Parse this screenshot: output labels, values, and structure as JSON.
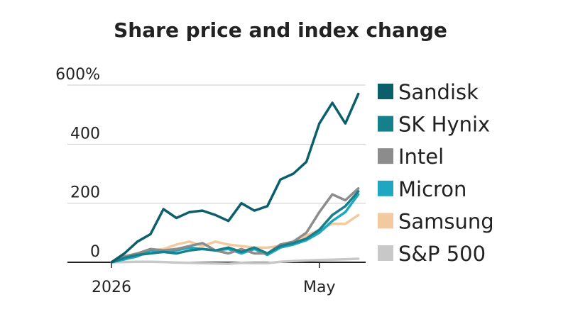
{
  "chart_data": {
    "type": "line",
    "title": "Share price and index change",
    "categories": [
      "2026",
      null,
      null,
      null,
      null,
      null,
      null,
      null,
      null,
      null,
      null,
      null,
      null,
      null,
      null,
      null,
      "May",
      null,
      null,
      null
    ],
    "series": [
      {
        "name": "Sandisk",
        "color": "#0b5f6b",
        "values": [
          0,
          30,
          70,
          95,
          180,
          150,
          170,
          175,
          160,
          140,
          200,
          175,
          190,
          280,
          300,
          340,
          470,
          540,
          470,
          570
        ]
      },
      {
        "name": "SK Hynix",
        "color": "#167f8c",
        "values": [
          0,
          15,
          25,
          30,
          35,
          30,
          40,
          45,
          40,
          50,
          35,
          50,
          30,
          55,
          65,
          80,
          110,
          160,
          190,
          240
        ]
      },
      {
        "name": "Intel",
        "color": "#8c8c8c",
        "values": [
          0,
          20,
          30,
          45,
          40,
          45,
          55,
          65,
          40,
          30,
          45,
          30,
          30,
          60,
          70,
          100,
          170,
          230,
          210,
          250
        ]
      },
      {
        "name": "Micron",
        "color": "#1fa6c0",
        "values": [
          0,
          10,
          20,
          40,
          35,
          40,
          50,
          45,
          40,
          45,
          30,
          45,
          25,
          50,
          60,
          75,
          100,
          140,
          170,
          230
        ]
      },
      {
        "name": "Samsung",
        "color": "#f3c9a0",
        "values": [
          0,
          10,
          25,
          40,
          45,
          60,
          70,
          55,
          70,
          60,
          55,
          50,
          50,
          55,
          70,
          90,
          110,
          130,
          130,
          160
        ]
      },
      {
        "name": "S&P 500",
        "color": "#c8c8c8",
        "values": [
          0,
          1,
          2,
          2,
          1,
          -1,
          -2,
          -3,
          -4,
          -5,
          -2,
          -3,
          -3,
          2,
          4,
          6,
          8,
          9,
          10,
          12
        ]
      }
    ],
    "ylim": [
      -15,
      600
    ],
    "yticks": [
      0,
      200,
      400,
      {
        "value": 600,
        "label": "600%"
      }
    ],
    "grid": true
  }
}
